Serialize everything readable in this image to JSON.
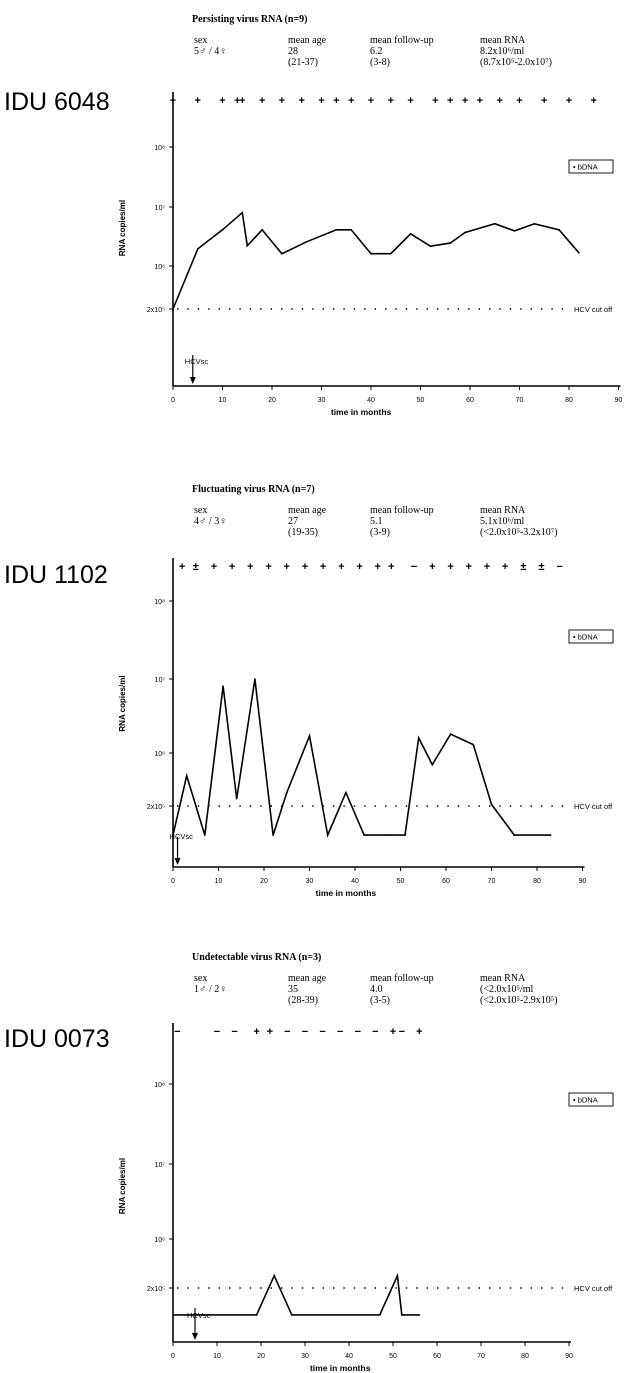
{
  "panels": [
    {
      "title": "Persisting virus RNA (n=9)",
      "stats": [
        {
          "header": "sex",
          "value": "5♂ / 4♀",
          "range": ""
        },
        {
          "header": "mean age",
          "value": "28",
          "range": "(21-37)"
        },
        {
          "header": "mean follow-up",
          "value": "6.2",
          "range": "(3-8)"
        },
        {
          "header": "mean RNA",
          "value": "8.2x10⁶/ml",
          "range": "(8.7x10⁵-2.0x10⁷)"
        }
      ],
      "patient": "IDU 6048",
      "ylabel": "RNA copies/ml",
      "xlabel": "time in months",
      "yticks": [
        "10⁸",
        "10⁷",
        "10⁶",
        "2x10⁵"
      ],
      "xticks": [
        "0",
        "10",
        "20",
        "30",
        "40",
        "50",
        "60",
        "70",
        "80",
        "90"
      ],
      "legend": "• bDNA",
      "cutoff_label": "HCV cut off",
      "seroconversion_label": "HCVsc"
    },
    {
      "title": "Fluctuating virus RNA (n=7)",
      "stats": [
        {
          "header": "sex",
          "value": "4♂ / 3♀",
          "range": ""
        },
        {
          "header": "mean age",
          "value": "27",
          "range": "(19-35)"
        },
        {
          "header": "mean follow-up",
          "value": "5.1",
          "range": "(3-9)"
        },
        {
          "header": "mean RNA",
          "value": "5.1x10⁶/ml",
          "range": "(<2.0x10⁵-3.2x10⁷)"
        }
      ],
      "patient": "IDU 1102",
      "ylabel": "RNA copies/ml",
      "xlabel": "time in months",
      "yticks": [
        "10⁸",
        "10⁷",
        "10⁶",
        "2x10⁵"
      ],
      "xticks": [
        "0",
        "10",
        "20",
        "30",
        "40",
        "50",
        "60",
        "70",
        "80",
        "90"
      ],
      "legend": "• bDNA",
      "cutoff_label": "HCV cut off",
      "seroconversion_label": "HCVsc"
    },
    {
      "title": "Undetectable virus RNA (n=3)",
      "stats": [
        {
          "header": "sex",
          "value": "1♂ / 2♀",
          "range": ""
        },
        {
          "header": "mean age",
          "value": "35",
          "range": "(28-39)"
        },
        {
          "header": "mean follow-up",
          "value": "4.0",
          "range": "(3-5)"
        },
        {
          "header": "mean RNA",
          "value": "(<2.0x10⁵/ml",
          "range": "(<2.0x10⁵-2.9x10⁵)"
        }
      ],
      "patient": "IDU 0073",
      "ylabel": "RNA copies/ml",
      "xlabel": "time in months",
      "yticks": [
        "10⁸",
        "10⁷",
        "10⁶",
        "2x10⁵"
      ],
      "xticks": [
        "0",
        "10",
        "20",
        "30",
        "40",
        "50",
        "60",
        "70",
        "80",
        "90"
      ],
      "legend": "• bDNA",
      "cutoff_label": "HCV cut off",
      "seroconversion_label": "HCVsc"
    }
  ],
  "chart_data": [
    {
      "type": "line",
      "title": "Persisting virus RNA (n=9)",
      "xlabel": "time in months",
      "ylabel": "RNA copies/ml",
      "x_range": [
        0,
        90
      ],
      "y_scale": "log",
      "cutoff": 200000,
      "seroconversion_month": 4,
      "series": [
        {
          "name": "bDNA",
          "x": [
            0,
            5,
            10,
            14,
            15,
            18,
            22,
            27,
            33,
            36,
            40,
            44,
            48,
            52,
            56,
            59,
            65,
            69,
            73,
            78,
            82
          ],
          "y": [
            200000,
            50000000,
            24000000,
            8000000,
            2200000,
            24000000,
            60000000,
            38000000,
            24000000,
            24000000,
            60000000,
            60000000,
            28000000,
            45000000,
            40000000,
            3700000,
            19000000,
            25000000,
            5200000,
            24000000,
            58000000
          ]
        }
      ],
      "test_results": {
        "x": [
          0,
          5,
          10,
          13,
          14,
          18,
          22,
          26,
          30,
          33,
          36,
          40,
          44,
          48,
          53,
          56,
          59,
          62,
          66,
          70,
          75,
          80,
          85
        ],
        "marks": [
          "+",
          "+",
          "+",
          "+",
          "+",
          "+",
          "+",
          "+",
          "+",
          "+",
          "+",
          "+",
          "+",
          "+",
          "+",
          "+",
          "+",
          "+",
          "+",
          "+",
          "+",
          "+",
          "+"
        ]
      }
    },
    {
      "type": "line",
      "title": "Fluctuating virus RNA (n=7)",
      "xlabel": "time in months",
      "ylabel": "RNA copies/ml",
      "x_range": [
        0,
        90
      ],
      "y_scale": "log",
      "cutoff": 200000,
      "seroconversion_month": 1,
      "series": [
        {
          "name": "bDNA",
          "x": [
            0,
            3,
            7,
            11,
            14,
            18,
            22,
            25,
            30,
            34,
            38,
            42,
            47,
            51,
            54,
            57,
            61,
            66,
            70,
            75,
            83
          ],
          "y": [
            100000,
            500000,
            100000,
            8000000,
            250000,
            10000000,
            100000,
            300000,
            1700000,
            100000,
            300000,
            100000,
            100000,
            100000,
            1600000,
            700000,
            1800000,
            1300000,
            210000,
            100000,
            100000
          ]
        }
      ],
      "test_results": {
        "x": [
          2,
          5,
          9,
          13,
          17,
          21,
          25,
          29,
          33,
          37,
          41,
          45,
          48,
          53,
          57,
          61,
          65,
          69,
          73,
          77,
          81,
          85
        ],
        "marks": [
          "+",
          "±",
          "+",
          "+",
          "+",
          "+",
          "+",
          "+",
          "+",
          "+",
          "+",
          "+",
          "+",
          "−",
          "+",
          "+",
          "+",
          "+",
          "+",
          "±",
          "±",
          "−"
        ]
      }
    },
    {
      "type": "line",
      "title": "Undetectable virus RNA (n=3)",
      "xlabel": "time in months",
      "ylabel": "RNA copies/ml",
      "x_range": [
        0,
        90
      ],
      "y_scale": "log",
      "cutoff": 200000,
      "seroconversion_month": 5,
      "series": [
        {
          "name": "bDNA",
          "x": [
            0,
            19,
            23,
            27,
            47,
            51,
            52,
            56
          ],
          "y": [
            100000,
            100000,
            300000,
            100000,
            100000,
            300000,
            100000,
            100000
          ]
        }
      ],
      "test_results": {
        "x": [
          1,
          10,
          14,
          19,
          22,
          26,
          30,
          34,
          38,
          42,
          46,
          50,
          52,
          56
        ],
        "marks": [
          "−",
          "−",
          "−",
          "+",
          "+",
          "−",
          "−",
          "−",
          "−",
          "−",
          "−",
          "+",
          "−",
          "+"
        ]
      }
    }
  ]
}
